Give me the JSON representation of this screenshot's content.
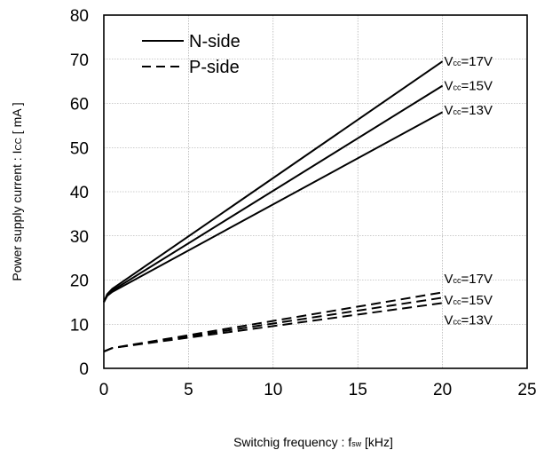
{
  "chart_data": {
    "type": "line",
    "title": "",
    "xlabel": {
      "main": "Switchig frequency : f",
      "sub": "sw",
      "unit": " [kHz]"
    },
    "ylabel": {
      "main": "Power supply current : I",
      "sub": "CC",
      "unit": " [ mA ]"
    },
    "xlim": [
      0,
      25
    ],
    "ylim": [
      0,
      80
    ],
    "xticks": [
      "0",
      "5",
      "10",
      "15",
      "20",
      "25"
    ],
    "yticks": [
      "0",
      "10",
      "20",
      "30",
      "40",
      "50",
      "60",
      "70",
      "80"
    ],
    "grid": true,
    "legend": {
      "placement": "top-left",
      "entries": [
        {
          "label": "N-side",
          "style": "solid"
        },
        {
          "label": "P-side",
          "style": "dashed"
        }
      ]
    },
    "series": [
      {
        "group": "N-side",
        "label": "Vcc=17V",
        "style": "solid",
        "x": [
          0,
          0.2,
          0.5,
          20
        ],
        "y": [
          15,
          16.8,
          18,
          69.5
        ]
      },
      {
        "group": "N-side",
        "label": "Vcc=15V",
        "style": "solid",
        "x": [
          0,
          0.2,
          0.5,
          20
        ],
        "y": [
          15,
          16.6,
          17.6,
          64
        ]
      },
      {
        "group": "N-side",
        "label": "Vcc=13V",
        "style": "solid",
        "x": [
          0,
          0.2,
          0.5,
          20
        ],
        "y": [
          15,
          16.4,
          17.3,
          58
        ]
      },
      {
        "group": "P-side",
        "label": "Vcc=17V",
        "style": "dashed",
        "x": [
          0,
          0.5,
          20
        ],
        "y": [
          3.8,
          4.6,
          17.2
        ]
      },
      {
        "group": "P-side",
        "label": "Vcc=15V",
        "style": "dashed",
        "x": [
          0,
          0.5,
          20
        ],
        "y": [
          3.8,
          4.6,
          16
        ]
      },
      {
        "group": "P-side",
        "label": "Vcc=13V",
        "style": "dashed",
        "x": [
          0,
          0.5,
          20
        ],
        "y": [
          3.8,
          4.6,
          14.8
        ]
      }
    ],
    "annotations": [
      {
        "label": "Vcc=17V",
        "v": "V",
        "sub": "cc",
        "rest": "=17V",
        "x": 20.1,
        "y": 69.5
      },
      {
        "label": "Vcc=15V",
        "v": "V",
        "sub": "cc",
        "rest": "=15V",
        "x": 20.1,
        "y": 64
      },
      {
        "label": "Vcc=13V",
        "v": "V",
        "sub": "cc",
        "rest": "=13V",
        "x": 20.1,
        "y": 58.5
      },
      {
        "label": "Vcc=17V",
        "v": "V",
        "sub": "cc",
        "rest": "=17V",
        "x": 20.1,
        "y": 20.3
      },
      {
        "label": "Vcc=15V",
        "v": "V",
        "sub": "cc",
        "rest": "=15V",
        "x": 20.1,
        "y": 15.5
      },
      {
        "label": "Vcc=13V",
        "v": "V",
        "sub": "cc",
        "rest": "=13V",
        "x": 20.1,
        "y": 11
      }
    ]
  }
}
